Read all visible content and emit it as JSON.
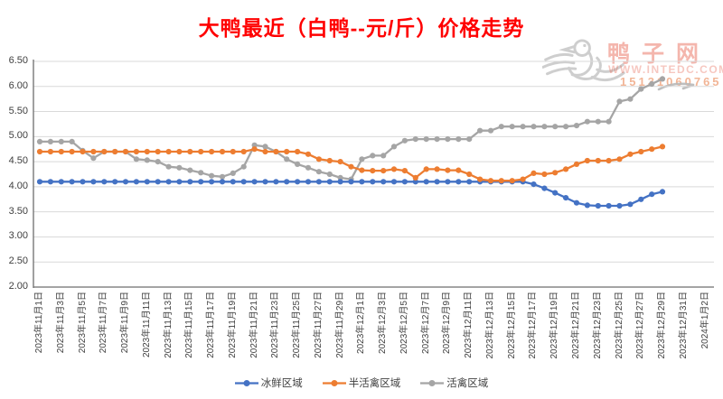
{
  "title": "大鸭最近（白鸭--元/斤）价格走势",
  "colors": {
    "title": "#FF0000",
    "grid": "#D9D9D9",
    "axis": "#6E6E6E",
    "tick_text": "#404040",
    "watermark_red": "#E8604C",
    "watermark_orange": "#E87941",
    "watermark_gray": "#C6C6C6"
  },
  "watermark": {
    "site_name": "鸭子网",
    "url": "WWW.INTEDC.COM",
    "phone": "15131060765"
  },
  "chart_data": {
    "type": "line",
    "title": "大鸭最近（白鸭--元/斤）价格走势",
    "xlabel": "",
    "ylabel": "",
    "ylim": [
      2.0,
      6.5
    ],
    "grid": true,
    "legend_position": "bottom",
    "marker": "circle",
    "y_tick_labels": [
      "6.50",
      "6.00",
      "5.50",
      "5.00",
      "4.50",
      "4.00",
      "3.50",
      "3.00",
      "2.50",
      "2.00"
    ],
    "x_tick_labels": [
      "2023年11月1日",
      "2023年11月3日",
      "2023年11月5日",
      "2023年11月7日",
      "2023年11月9日",
      "2023年11月11日",
      "2023年11月13日",
      "2023年11月15日",
      "2023年11月17日",
      "2023年11月19日",
      "2023年11月21日",
      "2023年11月23日",
      "2023年11月25日",
      "2023年11月27日",
      "2023年11月29日",
      "2023年12月1日",
      "2023年12月3日",
      "2023年12月5日",
      "2023年12月7日",
      "2023年12月9日",
      "2023年12月11日",
      "2023年12月13日",
      "2023年12月15日",
      "2023年12月17日",
      "2023年12月19日",
      "2023年12月21日",
      "2023年12月23日",
      "2023年12月25日",
      "2023年12月27日",
      "2023年12月29日",
      "2023年12月31日",
      "2024年1月2日"
    ],
    "x_daily_from": "2023年11月1日",
    "x_daily_to": "2023年12月29日",
    "series": [
      {
        "name": "冰鲜区域",
        "color": "#4472C4",
        "values": [
          4.1,
          4.1,
          4.1,
          4.1,
          4.1,
          4.1,
          4.1,
          4.1,
          4.1,
          4.1,
          4.1,
          4.1,
          4.1,
          4.1,
          4.1,
          4.1,
          4.1,
          4.1,
          4.1,
          4.1,
          4.1,
          4.1,
          4.1,
          4.1,
          4.1,
          4.1,
          4.1,
          4.1,
          4.1,
          4.1,
          4.1,
          4.1,
          4.1,
          4.1,
          4.1,
          4.1,
          4.1,
          4.1,
          4.1,
          4.1,
          4.1,
          4.1,
          4.1,
          4.1,
          4.1,
          4.1,
          4.05,
          3.97,
          3.88,
          3.78,
          3.68,
          3.63,
          3.62,
          3.62,
          3.62,
          3.65,
          3.75,
          3.85,
          3.9
        ]
      },
      {
        "name": "半活禽区域",
        "color": "#ED7D31",
        "values": [
          4.7,
          4.7,
          4.7,
          4.7,
          4.7,
          4.7,
          4.7,
          4.7,
          4.7,
          4.7,
          4.7,
          4.7,
          4.7,
          4.7,
          4.7,
          4.7,
          4.7,
          4.7,
          4.7,
          4.7,
          4.75,
          4.7,
          4.7,
          4.7,
          4.7,
          4.65,
          4.55,
          4.52,
          4.5,
          4.4,
          4.33,
          4.32,
          4.32,
          4.35,
          4.32,
          4.18,
          4.35,
          4.35,
          4.33,
          4.33,
          4.25,
          4.15,
          4.12,
          4.12,
          4.12,
          4.15,
          4.27,
          4.25,
          4.28,
          4.35,
          4.45,
          4.52,
          4.52,
          4.52,
          4.55,
          4.65,
          4.7,
          4.75,
          4.8
        ]
      },
      {
        "name": "活禽区域",
        "color": "#A5A5A5",
        "values": [
          4.9,
          4.9,
          4.9,
          4.9,
          4.72,
          4.57,
          4.7,
          4.7,
          4.7,
          4.55,
          4.53,
          4.5,
          4.4,
          4.38,
          4.33,
          4.28,
          4.22,
          4.2,
          4.27,
          4.4,
          4.83,
          4.8,
          4.7,
          4.55,
          4.45,
          4.38,
          4.3,
          4.25,
          4.18,
          4.15,
          4.55,
          4.62,
          4.62,
          4.8,
          4.92,
          4.95,
          4.95,
          4.95,
          4.95,
          4.95,
          4.95,
          5.12,
          5.12,
          5.2,
          5.2,
          5.2,
          5.2,
          5.2,
          5.2,
          5.2,
          5.22,
          5.3,
          5.3,
          5.3,
          5.7,
          5.75,
          5.95,
          6.05,
          6.15
        ]
      }
    ]
  }
}
